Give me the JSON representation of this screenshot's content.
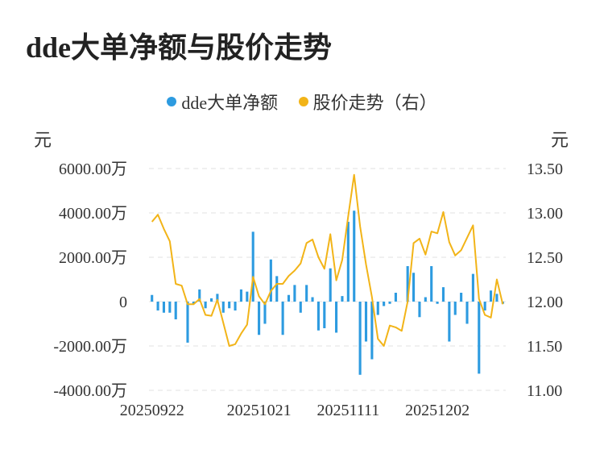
{
  "title": "dde大单净额与股价走势",
  "colors": {
    "bar": "#2d9be0",
    "line": "#f2b418",
    "grid": "#e6e6e6",
    "text": "#333333"
  },
  "legend": [
    {
      "label": "dde大单净额",
      "color": "#2d9be0"
    },
    {
      "label": "股价走势（右）",
      "color": "#f2b418"
    }
  ],
  "units": {
    "left": "元",
    "right": "元"
  },
  "chart_data": {
    "type": "bar+line",
    "left_axis": {
      "ticks": [
        "6000.00万",
        "4000.00万",
        "2000.00万",
        "0",
        "-2000.00万",
        "-4000.00万"
      ],
      "tick_values": [
        6000,
        4000,
        2000,
        0,
        -2000,
        -4000
      ],
      "range": [
        -4000,
        6000
      ]
    },
    "right_axis": {
      "ticks": [
        "13.50",
        "13.00",
        "12.50",
        "12.00",
        "11.50",
        "11.00"
      ],
      "tick_values": [
        13.5,
        13.0,
        12.5,
        12.0,
        11.5,
        11.0
      ],
      "range": [
        11.0,
        13.5
      ]
    },
    "x_tick_labels": [
      "20250922",
      "20251021",
      "20251111",
      "20251202"
    ],
    "x_tick_indices": [
      0,
      18,
      33,
      48
    ],
    "grid": true,
    "series": [
      {
        "name": "dde大单净额",
        "type": "bar",
        "axis": "left",
        "values": [
          300,
          -400,
          -500,
          -500,
          -800,
          0,
          -1850,
          -100,
          550,
          -300,
          150,
          350,
          -500,
          -300,
          -400,
          550,
          450,
          3150,
          -1500,
          -1000,
          1900,
          1150,
          -1500,
          300,
          750,
          -500,
          750,
          200,
          -1300,
          -1200,
          1500,
          -1400,
          250,
          3600,
          4100,
          -3300,
          -1800,
          -2600,
          -600,
          -200,
          -100,
          400,
          0,
          1600,
          1300,
          -700,
          200,
          1600,
          -100,
          650,
          -1800,
          -600,
          400,
          -1000,
          1250,
          -3250,
          -400,
          500,
          350,
          -100
        ]
      },
      {
        "name": "股价走势（右）",
        "type": "line",
        "axis": "right",
        "values": [
          12.9,
          12.98,
          12.82,
          12.68,
          12.2,
          12.18,
          11.97,
          11.97,
          12.03,
          11.85,
          11.84,
          12.02,
          11.76,
          11.5,
          11.52,
          11.64,
          11.74,
          12.28,
          12.06,
          11.97,
          12.12,
          12.2,
          12.2,
          12.29,
          12.35,
          12.43,
          12.66,
          12.7,
          12.5,
          12.37,
          12.76,
          12.24,
          12.47,
          12.96,
          13.43,
          12.85,
          12.42,
          12.05,
          11.58,
          11.5,
          11.73,
          11.71,
          11.67,
          12.0,
          12.66,
          12.71,
          12.53,
          12.79,
          12.77,
          13.01,
          12.67,
          12.52,
          12.58,
          12.72,
          12.86,
          12.03,
          11.85,
          11.82,
          12.25,
          11.97
        ]
      }
    ]
  }
}
